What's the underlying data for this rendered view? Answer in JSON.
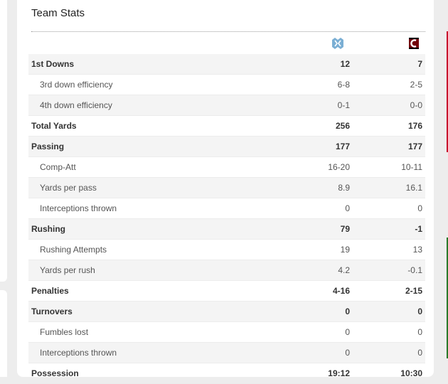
{
  "panel": {
    "title": "Team Stats"
  },
  "teams": [
    {
      "icon": "unc-tar-heels-logo-icon",
      "color": "#7bafd4"
    },
    {
      "icon": "south-carolina-gamecocks-logo-icon",
      "color": "#73000a"
    }
  ],
  "colors": {
    "row_stripe": "#f4f4f4",
    "border": "#e4e4e4",
    "accent_red": "#c8102e"
  },
  "stats": [
    {
      "label": "1st Downs",
      "home": "12",
      "away": "7",
      "type": "main"
    },
    {
      "label": "3rd down efficiency",
      "home": "6-8",
      "away": "2-5",
      "type": "sub"
    },
    {
      "label": "4th down efficiency",
      "home": "0-1",
      "away": "0-0",
      "type": "sub"
    },
    {
      "label": "Total Yards",
      "home": "256",
      "away": "176",
      "type": "main"
    },
    {
      "label": "Passing",
      "home": "177",
      "away": "177",
      "type": "main"
    },
    {
      "label": "Comp-Att",
      "home": "16-20",
      "away": "10-11",
      "type": "sub"
    },
    {
      "label": "Yards per pass",
      "home": "8.9",
      "away": "16.1",
      "type": "sub"
    },
    {
      "label": "Interceptions thrown",
      "home": "0",
      "away": "0",
      "type": "sub"
    },
    {
      "label": "Rushing",
      "home": "79",
      "away": "-1",
      "type": "main"
    },
    {
      "label": "Rushing Attempts",
      "home": "19",
      "away": "13",
      "type": "sub"
    },
    {
      "label": "Yards per rush",
      "home": "4.2",
      "away": "-0.1",
      "type": "sub"
    },
    {
      "label": "Penalties",
      "home": "4-16",
      "away": "2-15",
      "type": "main"
    },
    {
      "label": "Turnovers",
      "home": "0",
      "away": "0",
      "type": "main"
    },
    {
      "label": "Fumbles lost",
      "home": "0",
      "away": "0",
      "type": "sub"
    },
    {
      "label": "Interceptions thrown",
      "home": "0",
      "away": "0",
      "type": "sub"
    },
    {
      "label": "Possession",
      "home": "19:12",
      "away": "10:30",
      "type": "main"
    }
  ]
}
